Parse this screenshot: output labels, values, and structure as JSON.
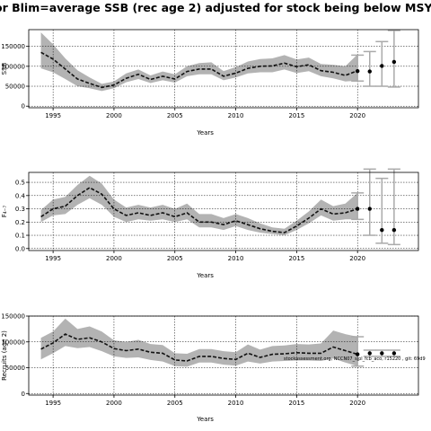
{
  "title": "or Blim=average SSB (rec age 2) adjusted for stock being below MSY Btr",
  "note": "stockassessment.org, NCCN07_sjpl_fcb_aco, r15220 , git: 69d9",
  "chart_data": [
    {
      "type": "line",
      "panel": "ssb",
      "xlabel": "Years",
      "ylabel": "SSB",
      "xlim": [
        1993,
        2025
      ],
      "ylim": [
        -4000,
        192000
      ],
      "xticks": [
        1995,
        2000,
        2005,
        2010,
        2015,
        2020
      ],
      "yticks": [
        0,
        50000,
        100000,
        150000
      ],
      "yticklabels": [
        "0",
        "50000",
        "100000",
        "150000"
      ],
      "x": [
        1994,
        1995,
        1996,
        1997,
        1998,
        1999,
        2000,
        2001,
        2002,
        2003,
        2004,
        2005,
        2006,
        2007,
        2008,
        2009,
        2010,
        2011,
        2012,
        2013,
        2014,
        2015,
        2016,
        2017,
        2018,
        2019,
        2020
      ],
      "estimate": [
        135000,
        118000,
        93000,
        68000,
        57000,
        47000,
        53000,
        70000,
        80000,
        67000,
        75000,
        68000,
        87000,
        93000,
        93000,
        75000,
        83000,
        95000,
        100000,
        101000,
        108000,
        99000,
        104000,
        89000,
        85000,
        77000,
        89000
      ],
      "lower": [
        95000,
        85000,
        68000,
        50000,
        45000,
        38000,
        45000,
        60000,
        68000,
        58000,
        65000,
        59000,
        75000,
        80000,
        80000,
        65000,
        72000,
        82000,
        85000,
        85000,
        92000,
        83000,
        88000,
        75000,
        70000,
        62000,
        64000
      ],
      "upper": [
        185000,
        155000,
        120000,
        90000,
        72000,
        56000,
        62000,
        82000,
        92000,
        77000,
        87000,
        80000,
        100000,
        108000,
        110000,
        88000,
        98000,
        112000,
        118000,
        120000,
        128000,
        117000,
        122000,
        106000,
        104000,
        100000,
        130000
      ],
      "forecast": {
        "x": [
          2020,
          2021,
          2022,
          2023
        ],
        "median": [
          88000,
          87000,
          101000,
          111000
        ],
        "lower": [
          63000,
          50000,
          50000,
          48000
        ],
        "upper": [
          128000,
          137000,
          162000,
          190000
        ]
      }
    },
    {
      "type": "line",
      "panel": "fbar",
      "xlabel": "Years",
      "ylabel": "F₄₋₇",
      "xlim": [
        1993,
        2025
      ],
      "ylim": [
        -0.015,
        0.575
      ],
      "xticks": [
        1995,
        2000,
        2005,
        2010,
        2015,
        2020
      ],
      "yticks": [
        0,
        0.1,
        0.2,
        0.3,
        0.4,
        0.5
      ],
      "yticklabels": [
        "0.0",
        "0.1",
        "0.2",
        "0.3",
        "0.4",
        "0.5"
      ],
      "x": [
        1994,
        1995,
        1996,
        1997,
        1998,
        1999,
        2000,
        2001,
        2002,
        2003,
        2004,
        2005,
        2006,
        2007,
        2008,
        2009,
        2010,
        2011,
        2012,
        2013,
        2014,
        2015,
        2016,
        2017,
        2018,
        2019,
        2020
      ],
      "estimate": [
        0.24,
        0.3,
        0.32,
        0.4,
        0.46,
        0.41,
        0.3,
        0.25,
        0.27,
        0.25,
        0.27,
        0.24,
        0.27,
        0.2,
        0.2,
        0.18,
        0.21,
        0.18,
        0.15,
        0.13,
        0.12,
        0.17,
        0.23,
        0.3,
        0.26,
        0.27,
        0.3
      ],
      "lower": [
        0.2,
        0.25,
        0.26,
        0.33,
        0.38,
        0.33,
        0.24,
        0.2,
        0.22,
        0.21,
        0.22,
        0.2,
        0.22,
        0.16,
        0.16,
        0.14,
        0.17,
        0.14,
        0.12,
        0.11,
        0.1,
        0.14,
        0.19,
        0.25,
        0.21,
        0.22,
        0.22
      ],
      "upper": [
        0.29,
        0.37,
        0.39,
        0.48,
        0.55,
        0.49,
        0.37,
        0.31,
        0.33,
        0.31,
        0.33,
        0.3,
        0.34,
        0.26,
        0.26,
        0.23,
        0.26,
        0.23,
        0.19,
        0.16,
        0.15,
        0.21,
        0.28,
        0.37,
        0.32,
        0.34,
        0.42
      ],
      "forecast": {
        "x": [
          2020,
          2021,
          2022,
          2023
        ],
        "median": [
          0.3,
          0.3,
          0.14,
          0.14
        ],
        "lower": [
          0.22,
          0.1,
          0.04,
          0.03
        ],
        "upper": [
          0.42,
          0.6,
          0.53,
          0.6
        ]
      }
    },
    {
      "type": "line",
      "panel": "recruits",
      "xlabel": "Years",
      "ylabel": "Recruits (age 2)",
      "xlim": [
        1993,
        2025
      ],
      "ylim": [
        -3000,
        150000
      ],
      "xticks": [
        1995,
        2000,
        2005,
        2010,
        2015,
        2020
      ],
      "yticks": [
        0,
        50000,
        100000,
        150000
      ],
      "yticklabels": [
        "0",
        "50000",
        "100000",
        "150000"
      ],
      "x": [
        1994,
        1995,
        1996,
        1997,
        1998,
        1999,
        2000,
        2001,
        2002,
        2003,
        2004,
        2005,
        2006,
        2007,
        2008,
        2009,
        2010,
        2011,
        2012,
        2013,
        2014,
        2015,
        2016,
        2017,
        2018,
        2019,
        2020
      ],
      "estimate": [
        86000,
        98000,
        115000,
        105000,
        108000,
        100000,
        87000,
        83000,
        86000,
        80000,
        78000,
        65000,
        63000,
        72000,
        72000,
        68000,
        66000,
        78000,
        70000,
        76000,
        77000,
        79000,
        78000,
        78000,
        90000,
        83000,
        76000
      ],
      "lower": [
        66000,
        78000,
        92000,
        88000,
        90000,
        82000,
        72000,
        69000,
        70000,
        65000,
        62000,
        53000,
        52000,
        60000,
        60000,
        56000,
        54000,
        62000,
        58000,
        62000,
        63000,
        64000,
        64000,
        63000,
        68000,
        60000,
        53000
      ],
      "upper": [
        108000,
        120000,
        145000,
        125000,
        130000,
        120000,
        103000,
        100000,
        104000,
        96000,
        94000,
        78000,
        77000,
        86000,
        86000,
        82000,
        80000,
        95000,
        85000,
        92000,
        93000,
        96000,
        95000,
        97000,
        122000,
        115000,
        110000
      ],
      "forecast": {
        "x": [
          2020,
          2021,
          2022,
          2023
        ],
        "median": [
          76000,
          78000,
          78000,
          78000
        ],
        "lower": [
          53000,
          72000,
          72000,
          72000
        ],
        "upper": [
          110000,
          84000,
          84000,
          84000
        ]
      }
    }
  ]
}
